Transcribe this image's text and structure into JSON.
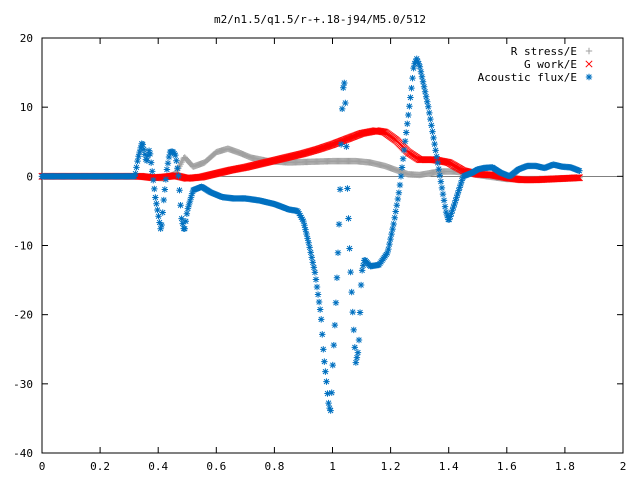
{
  "chart_data": {
    "type": "scatter",
    "title": "m2/n1.5/q1.5/r-+.18-j94/M5.0/512",
    "xlabel": "",
    "ylabel": "",
    "xlim": [
      0,
      2
    ],
    "ylim": [
      -40,
      20
    ],
    "xticks": [
      "0",
      "0.2",
      "0.4",
      "0.6",
      "0.8",
      "1",
      "1.2",
      "1.4",
      "1.6",
      "1.8",
      "2"
    ],
    "yticks": [
      "-40",
      "-30",
      "-20",
      "-10",
      "0",
      "10",
      "20"
    ],
    "grid": false,
    "legend_position": "top-right",
    "series": [
      {
        "name": "R stress/E",
        "marker": "plus",
        "color": "#a0a0a0",
        "x_range": [
          0,
          1.85
        ],
        "points": [
          [
            0,
            0
          ],
          [
            0.34,
            0
          ],
          [
            0.42,
            -0.3
          ],
          [
            0.46,
            0.4
          ],
          [
            0.49,
            2.8
          ],
          [
            0.52,
            1.4
          ],
          [
            0.56,
            2.0
          ],
          [
            0.6,
            3.5
          ],
          [
            0.64,
            4.0
          ],
          [
            0.68,
            3.4
          ],
          [
            0.72,
            2.7
          ],
          [
            0.78,
            2.2
          ],
          [
            0.85,
            2.0
          ],
          [
            0.92,
            2.1
          ],
          [
            1.0,
            2.2
          ],
          [
            1.08,
            2.2
          ],
          [
            1.13,
            2.0
          ],
          [
            1.18,
            1.5
          ],
          [
            1.22,
            0.9
          ],
          [
            1.26,
            0.3
          ],
          [
            1.3,
            0.2
          ],
          [
            1.34,
            0.5
          ],
          [
            1.38,
            0.7
          ],
          [
            1.42,
            0.7
          ],
          [
            1.46,
            0.5
          ],
          [
            1.5,
            0.2
          ],
          [
            1.55,
            -0.1
          ],
          [
            1.6,
            -0.4
          ],
          [
            1.7,
            -0.4
          ],
          [
            1.8,
            -0.3
          ],
          [
            1.85,
            -0.2
          ]
        ]
      },
      {
        "name": "G work/E",
        "marker": "cross",
        "color": "#ff0000",
        "x_range": [
          0,
          1.85
        ],
        "points": [
          [
            0,
            0
          ],
          [
            0.34,
            0
          ],
          [
            0.38,
            -0.2
          ],
          [
            0.42,
            -0.1
          ],
          [
            0.46,
            0.1
          ],
          [
            0.5,
            -0.3
          ],
          [
            0.55,
            -0.1
          ],
          [
            0.6,
            0.4
          ],
          [
            0.65,
            0.9
          ],
          [
            0.7,
            1.3
          ],
          [
            0.75,
            1.8
          ],
          [
            0.8,
            2.3
          ],
          [
            0.85,
            2.8
          ],
          [
            0.9,
            3.3
          ],
          [
            0.95,
            3.9
          ],
          [
            1.0,
            4.6
          ],
          [
            1.05,
            5.4
          ],
          [
            1.1,
            6.2
          ],
          [
            1.15,
            6.6
          ],
          [
            1.18,
            6.4
          ],
          [
            1.22,
            5.2
          ],
          [
            1.26,
            3.5
          ],
          [
            1.3,
            2.4
          ],
          [
            1.35,
            2.4
          ],
          [
            1.4,
            2.0
          ],
          [
            1.45,
            0.8
          ],
          [
            1.5,
            0.3
          ],
          [
            1.55,
            0.2
          ],
          [
            1.6,
            -0.2
          ],
          [
            1.65,
            -0.5
          ],
          [
            1.7,
            -0.5
          ],
          [
            1.8,
            -0.3
          ],
          [
            1.85,
            -0.2
          ]
        ]
      },
      {
        "name": "Acoustic flux/E",
        "marker": "star",
        "color": "#0070c0",
        "x_range": [
          0,
          1.85
        ],
        "points": [
          [
            0,
            0
          ],
          [
            0.32,
            0
          ],
          [
            0.33,
            2.5
          ],
          [
            0.345,
            5.0
          ],
          [
            0.36,
            2.0
          ],
          [
            0.37,
            4.0
          ],
          [
            0.38,
            0.5
          ],
          [
            0.39,
            -3.0
          ],
          [
            0.4,
            -5.5
          ],
          [
            0.41,
            -8.0
          ],
          [
            0.42,
            -3.0
          ],
          [
            0.43,
            1.0
          ],
          [
            0.44,
            3.5
          ],
          [
            0.45,
            3.6
          ],
          [
            0.46,
            3.0
          ],
          [
            0.47,
            0.0
          ],
          [
            0.48,
            -6.0
          ],
          [
            0.49,
            -8.0
          ],
          [
            0.5,
            -5.0
          ],
          [
            0.52,
            -2.0
          ],
          [
            0.55,
            -1.5
          ],
          [
            0.58,
            -2.3
          ],
          [
            0.62,
            -3.0
          ],
          [
            0.66,
            -3.2
          ],
          [
            0.7,
            -3.2
          ],
          [
            0.75,
            -3.5
          ],
          [
            0.8,
            -4.0
          ],
          [
            0.85,
            -4.8
          ],
          [
            0.88,
            -5.0
          ],
          [
            0.9,
            -6.5
          ],
          [
            0.92,
            -10.0
          ],
          [
            0.94,
            -14.0
          ],
          [
            0.96,
            -20.0
          ],
          [
            0.97,
            -26.0
          ],
          [
            0.98,
            -30.0
          ],
          [
            0.985,
            -32.5
          ],
          [
            0.99,
            -33.5
          ],
          [
            0.995,
            -34.0
          ],
          [
            1.0,
            -28.0
          ],
          [
            1.01,
            -20.0
          ],
          [
            1.02,
            -10.0
          ],
          [
            1.025,
            -4.0
          ],
          [
            1.03,
            5.0
          ],
          [
            1.035,
            12.0
          ],
          [
            1.04,
            14.0
          ],
          [
            1.045,
            10.0
          ],
          [
            1.05,
            0.0
          ],
          [
            1.06,
            -12.0
          ],
          [
            1.07,
            -20.0
          ],
          [
            1.08,
            -27.0
          ],
          [
            1.09,
            -25.0
          ],
          [
            1.1,
            -14.0
          ],
          [
            1.11,
            -12.0
          ],
          [
            1.13,
            -13.0
          ],
          [
            1.16,
            -12.8
          ],
          [
            1.19,
            -11.0
          ],
          [
            1.21,
            -7.0
          ],
          [
            1.23,
            -2.0
          ],
          [
            1.25,
            5.0
          ],
          [
            1.27,
            12.0
          ],
          [
            1.28,
            16.0
          ],
          [
            1.29,
            17.0
          ],
          [
            1.3,
            16.0
          ],
          [
            1.31,
            14.0
          ],
          [
            1.33,
            10.0
          ],
          [
            1.35,
            5.0
          ],
          [
            1.37,
            0.0
          ],
          [
            1.39,
            -5.0
          ],
          [
            1.4,
            -6.5
          ],
          [
            1.42,
            -4.0
          ],
          [
            1.45,
            0.0
          ],
          [
            1.48,
            0.5
          ],
          [
            1.5,
            1.0
          ],
          [
            1.52,
            1.2
          ],
          [
            1.55,
            1.3
          ],
          [
            1.58,
            0.5
          ],
          [
            1.61,
            0.0
          ],
          [
            1.64,
            1.0
          ],
          [
            1.67,
            1.5
          ],
          [
            1.7,
            1.5
          ],
          [
            1.73,
            1.2
          ],
          [
            1.76,
            1.7
          ],
          [
            1.79,
            1.4
          ],
          [
            1.82,
            1.3
          ],
          [
            1.85,
            0.8
          ]
        ]
      }
    ]
  }
}
